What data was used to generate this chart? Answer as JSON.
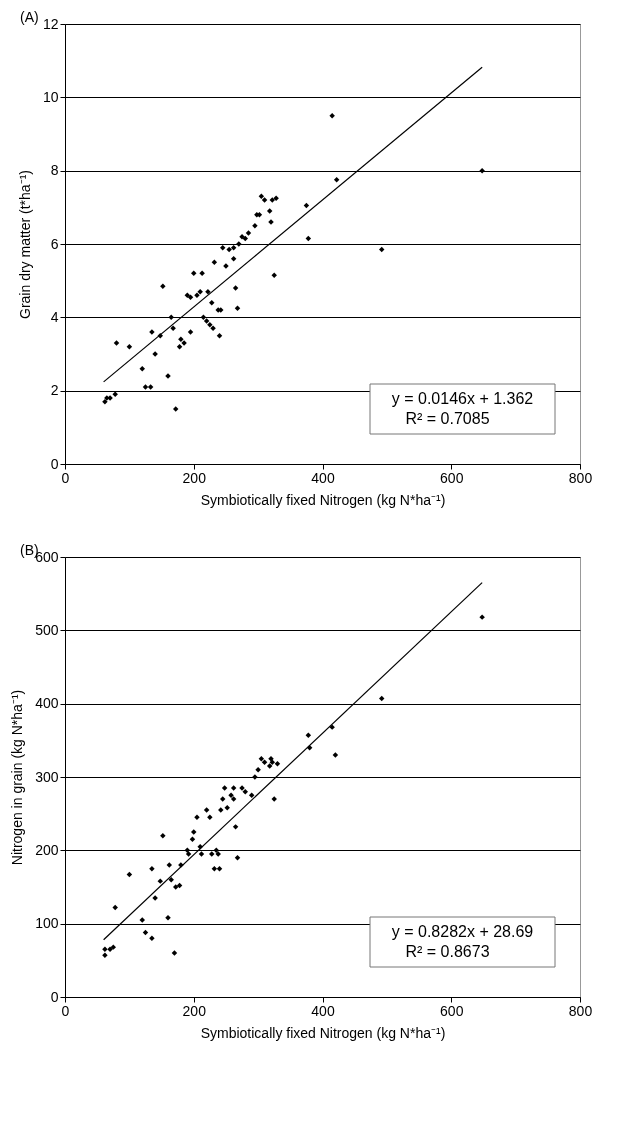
{
  "chart_data": [
    {
      "type": "scatter",
      "title": "(A)",
      "xlabel": "Symbiotically fixed Nitrogen (kg N*ha⁻¹)",
      "ylabel": "Grain dry matter (t*ha⁻¹)",
      "xlim": [
        0,
        800
      ],
      "xticks": [
        0,
        200,
        400,
        600,
        800
      ],
      "ylim": [
        0,
        12
      ],
      "yticks": [
        0,
        2,
        4,
        6,
        8,
        10,
        12
      ],
      "grid": "y",
      "annotations": [
        "y = 0.0146x + 1.362",
        "R² = 0.7085"
      ],
      "series": [
        {
          "marker": "diamond",
          "color": "#000000",
          "x": [
            62,
            65,
            70,
            78,
            80,
            100,
            120,
            125,
            133,
            135,
            140,
            148,
            152,
            160,
            165,
            168,
            172,
            178,
            180,
            185,
            190,
            195,
            195,
            200,
            205,
            210,
            213,
            215,
            220,
            222,
            225,
            228,
            230,
            232,
            238,
            240,
            242,
            245,
            250,
            255,
            262,
            262,
            265,
            268,
            270,
            275,
            280,
            285,
            295,
            298,
            302,
            305,
            310,
            318,
            320,
            322,
            325,
            328,
            375,
            378,
            415,
            422,
            492,
            648
          ],
          "values": [
            1.7,
            1.8,
            1.8,
            1.9,
            3.3,
            3.2,
            2.6,
            2.1,
            2.1,
            3.6,
            3.0,
            3.5,
            4.85,
            2.4,
            4.0,
            3.7,
            1.5,
            3.2,
            3.4,
            3.3,
            4.6,
            3.6,
            4.55,
            5.2,
            4.6,
            4.7,
            5.2,
            4.0,
            3.9,
            4.7,
            3.8,
            4.4,
            3.7,
            5.5,
            4.2,
            3.5,
            4.2,
            5.9,
            5.4,
            5.85,
            5.9,
            5.6,
            4.8,
            4.25,
            6.0,
            6.2,
            6.15,
            6.3,
            6.5,
            6.8,
            6.8,
            7.3,
            7.2,
            6.9,
            6.6,
            7.2,
            5.15,
            7.25,
            7.05,
            6.15,
            9.5,
            7.75,
            5.85,
            8.0
          ]
        },
        {
          "type": "line",
          "marker": "none",
          "color": "#000000",
          "x": [
            60,
            648
          ],
          "values": [
            2.24,
            10.82
          ]
        }
      ]
    },
    {
      "type": "scatter",
      "title": "(B)",
      "xlabel": "Symbiotically fixed Nitrogen (kg N*ha⁻¹)",
      "ylabel": "Nitrogen in grain (kg N*ha⁻¹)",
      "xlim": [
        0,
        800
      ],
      "xticks": [
        0,
        200,
        400,
        600,
        800
      ],
      "ylim": [
        0,
        600
      ],
      "yticks": [
        0,
        100,
        200,
        300,
        400,
        500,
        600
      ],
      "grid": "y",
      "annotations": [
        "y = 0.8282x + 28.69",
        "R² = 0.8673"
      ],
      "series": [
        {
          "marker": "diamond",
          "color": "#000000",
          "x": [
            62,
            62,
            70,
            75,
            78,
            100,
            120,
            125,
            135,
            135,
            140,
            148,
            152,
            160,
            162,
            165,
            170,
            172,
            178,
            180,
            190,
            192,
            198,
            200,
            205,
            210,
            212,
            220,
            225,
            228,
            232,
            235,
            238,
            240,
            242,
            245,
            248,
            252,
            258,
            262,
            262,
            265,
            268,
            275,
            280,
            290,
            295,
            300,
            305,
            310,
            318,
            320,
            322,
            325,
            330,
            378,
            380,
            415,
            420,
            492,
            648
          ],
          "values": [
            57,
            65,
            65,
            68,
            122,
            167,
            105,
            88,
            80,
            175,
            135,
            158,
            220,
            108,
            180,
            160,
            60,
            150,
            152,
            180,
            200,
            195,
            215,
            225,
            245,
            205,
            195,
            255,
            245,
            195,
            175,
            200,
            195,
            175,
            255,
            270,
            285,
            258,
            275,
            285,
            270,
            232,
            190,
            285,
            280,
            275,
            300,
            310,
            325,
            320,
            315,
            325,
            320,
            270,
            318,
            357,
            340,
            368,
            330,
            407,
            518
          ]
        },
        {
          "type": "line",
          "marker": "none",
          "color": "#000000",
          "x": [
            60,
            648
          ],
          "values": [
            78,
            565
          ]
        }
      ]
    }
  ]
}
